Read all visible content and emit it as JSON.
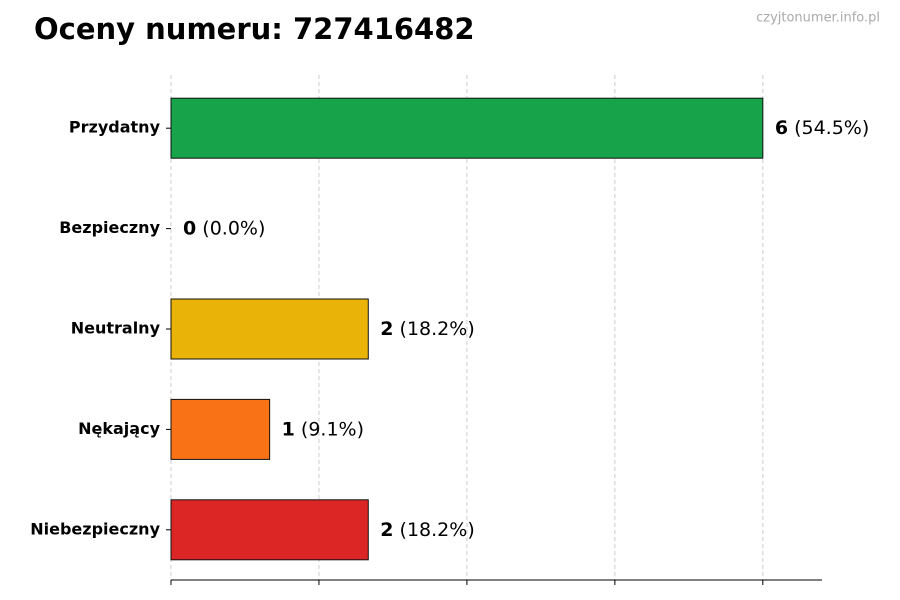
{
  "chart_data": {
    "type": "bar",
    "orientation": "horizontal",
    "title": "Oceny numeru: 727416482",
    "watermark": "czyjtonumer.info.pl",
    "categories": [
      "Przydatny",
      "Bezpieczny",
      "Neutralny",
      "Nękający",
      "Niebezpieczny"
    ],
    "values": [
      6,
      0,
      2,
      1,
      2
    ],
    "percent_labels": [
      "(54.5%)",
      "(0.0%)",
      "(18.2%)",
      "(9.1%)",
      "(18.2%)"
    ],
    "colors": [
      "#16a34a",
      "#22c55e",
      "#eab308",
      "#f97316",
      "#dc2626"
    ],
    "xlim": [
      0,
      6.6
    ],
    "xticks": [
      0,
      1.5,
      3,
      4.5,
      6
    ],
    "grid": true
  }
}
